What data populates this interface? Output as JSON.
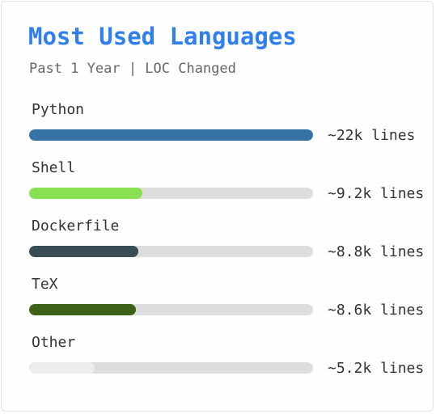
{
  "header": {
    "title": "Most Used Languages",
    "subtitle": "Past 1 Year | LOC Changed"
  },
  "chart_data": {
    "type": "bar",
    "orientation": "horizontal",
    "title": "Most Used Languages",
    "subtitle": "Past 1 Year | LOC Changed",
    "categories": [
      "Python",
      "Shell",
      "Dockerfile",
      "TeX",
      "Other"
    ],
    "values": [
      22000,
      9200,
      8800,
      8600,
      5200
    ],
    "value_labels": [
      "~22k lines",
      "~9.2k lines",
      "~8.8k lines",
      "~8.6k lines",
      "~5.2k lines"
    ],
    "bar_fill_fraction": [
      1.0,
      0.4,
      0.385,
      0.375,
      0.23
    ],
    "colors": [
      "#3572a5",
      "#89e051",
      "#384d54",
      "#3d6117",
      "#ededed"
    ],
    "track_color": "#dddddd",
    "grid": false,
    "legend": "none"
  }
}
